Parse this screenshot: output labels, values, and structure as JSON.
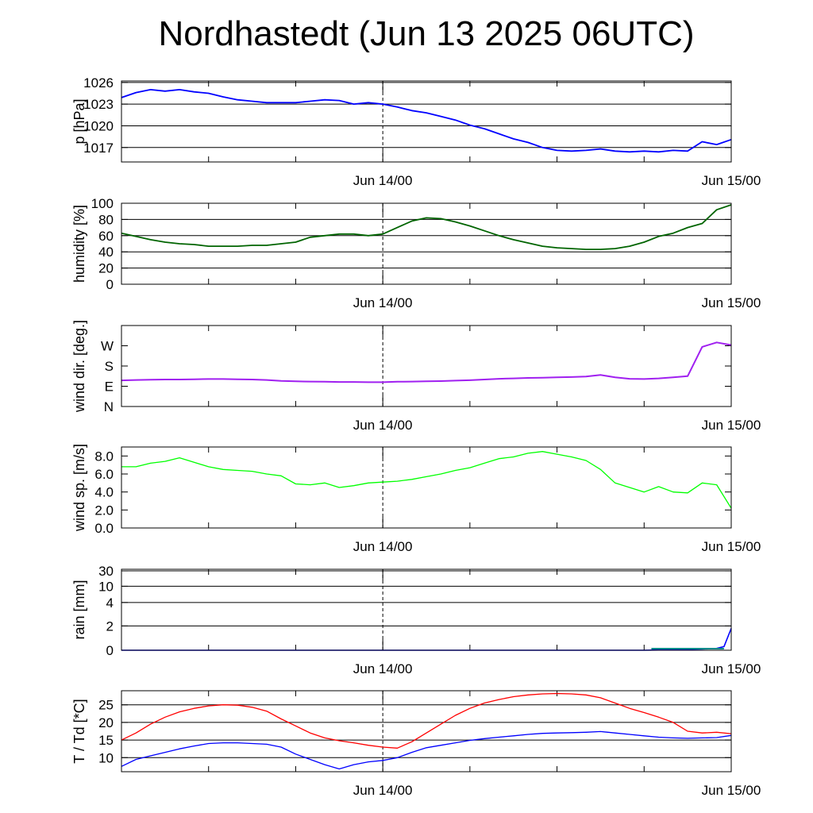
{
  "title": "Nordhastedt (Jun 13 2025 06UTC)",
  "colors": {
    "pressure": "#0000ff",
    "humidity": "#006400",
    "wind_dir": "#a020f0",
    "wind_speed": "#00ff00",
    "rain": "#0000ff",
    "rain2": "#008b8b",
    "temperature": "#ff0000",
    "dewpoint": "#0000ff"
  },
  "chart_data": [
    {
      "type": "line",
      "ylabel": "p [hPa]",
      "x_hours": [
        0,
        1,
        2,
        3,
        4,
        5,
        6,
        7,
        8,
        9,
        10,
        11,
        12,
        13,
        14,
        15,
        16,
        17,
        18,
        19,
        20,
        21,
        22,
        23,
        24,
        25,
        26,
        27,
        28,
        29,
        30,
        31,
        32,
        33,
        34,
        35,
        36,
        37,
        38,
        39,
        40,
        41,
        42
      ],
      "x_ticks": [
        "Jun 14/00",
        "Jun 15/00"
      ],
      "ylim": [
        1015,
        1026.2
      ],
      "y_ticks": [
        1017,
        1020,
        1023,
        1026
      ],
      "grid": true,
      "series": [
        {
          "values": [
            1023.9,
            1024.6,
            1025.0,
            1024.8,
            1025.0,
            1024.7,
            1024.5,
            1024.0,
            1023.6,
            1023.4,
            1023.2,
            1023.2,
            1023.2,
            1023.4,
            1023.6,
            1023.5,
            1023.0,
            1023.2,
            1023.0,
            1022.6,
            1022.1,
            1021.8,
            1021.3,
            1020.8,
            1020.1,
            1019.6,
            1018.9,
            1018.2,
            1017.7,
            1017.0,
            1016.6,
            1016.5,
            1016.6,
            1016.8,
            1016.5,
            1016.4,
            1016.5,
            1016.4,
            1016.6,
            1016.5,
            1017.8,
            1017.4,
            1018.1
          ]
        }
      ]
    },
    {
      "type": "line",
      "ylabel": "humidity [%]",
      "x_hours": [
        0,
        1,
        2,
        3,
        4,
        5,
        6,
        7,
        8,
        9,
        10,
        11,
        12,
        13,
        14,
        15,
        16,
        17,
        18,
        19,
        20,
        21,
        22,
        23,
        24,
        25,
        26,
        27,
        28,
        29,
        30,
        31,
        32,
        33,
        34,
        35,
        36,
        37,
        38,
        39,
        40,
        41,
        42
      ],
      "x_ticks": [
        "Jun 14/00",
        "Jun 15/00"
      ],
      "ylim": [
        0,
        100
      ],
      "y_ticks": [
        0,
        20,
        40,
        60,
        80,
        100
      ],
      "grid": true,
      "series": [
        {
          "values": [
            63,
            59,
            55,
            52,
            50,
            49,
            47,
            47,
            47,
            48,
            48,
            50,
            52,
            58,
            60,
            62,
            62,
            60,
            62,
            70,
            78,
            82,
            81,
            77,
            72,
            66,
            60,
            55,
            51,
            47,
            45,
            44,
            43,
            43,
            44,
            47,
            52,
            59,
            63,
            70,
            75,
            92,
            98
          ]
        }
      ]
    },
    {
      "type": "line",
      "ylabel": "wind dir. [deg.]",
      "x_hours": [
        0,
        1,
        2,
        3,
        4,
        5,
        6,
        7,
        8,
        9,
        10,
        11,
        12,
        13,
        14,
        15,
        16,
        17,
        18,
        19,
        20,
        21,
        22,
        23,
        24,
        25,
        26,
        27,
        28,
        29,
        30,
        31,
        32,
        33,
        34,
        35,
        36,
        37,
        38,
        39,
        40,
        41,
        42
      ],
      "x_ticks": [
        "Jun 14/00",
        "Jun 15/00"
      ],
      "ylim": [
        0,
        360
      ],
      "y_ticks": [
        "N",
        "E",
        "S",
        "W"
      ],
      "y_tick_values": [
        0,
        90,
        180,
        270
      ],
      "grid": false,
      "series": [
        {
          "values": [
            116,
            118,
            119,
            120,
            120,
            121,
            122,
            122,
            121,
            120,
            118,
            114,
            112,
            111,
            110,
            109,
            109,
            108,
            108,
            110,
            111,
            112,
            113,
            115,
            117,
            120,
            123,
            125,
            127,
            128,
            130,
            131,
            133,
            140,
            130,
            123,
            122,
            125,
            130,
            135,
            265,
            285,
            273
          ]
        }
      ]
    },
    {
      "type": "line",
      "ylabel": "wind sp. [m/s]",
      "x_hours": [
        0,
        1,
        2,
        3,
        4,
        5,
        6,
        7,
        8,
        9,
        10,
        11,
        12,
        13,
        14,
        15,
        16,
        17,
        18,
        19,
        20,
        21,
        22,
        23,
        24,
        25,
        26,
        27,
        28,
        29,
        30,
        31,
        32,
        33,
        34,
        35,
        36,
        37,
        38,
        39,
        40,
        41,
        42
      ],
      "x_ticks": [
        "Jun 14/00",
        "Jun 15/00"
      ],
      "ylim": [
        0,
        9
      ],
      "y_ticks": [
        "0.0",
        "2.0",
        "4.0",
        "6.0",
        "8.0"
      ],
      "grid": false,
      "series": [
        {
          "values": [
            6.8,
            6.8,
            7.2,
            7.4,
            7.8,
            7.3,
            6.8,
            6.5,
            6.4,
            6.3,
            6.0,
            5.8,
            4.9,
            4.8,
            5.0,
            4.5,
            4.7,
            5.0,
            5.1,
            5.2,
            5.4,
            5.7,
            6.0,
            6.4,
            6.7,
            7.2,
            7.7,
            7.9,
            8.3,
            8.5,
            8.2,
            7.9,
            7.5,
            6.5,
            5.0,
            4.5,
            4.0,
            4.6,
            4.0,
            3.9,
            5.0,
            4.8,
            2.2
          ]
        }
      ]
    },
    {
      "type": "line",
      "ylabel": "rain [mm]",
      "x_hours": [
        0,
        6,
        12,
        18,
        24,
        30,
        36,
        37,
        38,
        39,
        40,
        41,
        41.5,
        42
      ],
      "x_ticks": [
        "Jun 14/00",
        "Jun 15/00"
      ],
      "y_ticks": [
        "0",
        "2",
        "4",
        "10",
        "30"
      ],
      "y_tick_values": [
        0,
        2,
        4,
        10,
        30
      ],
      "grid": true,
      "series": [
        {
          "values": [
            0,
            0,
            0,
            0,
            0,
            0,
            0,
            0.02,
            0.05,
            0.08,
            0.1,
            0.15,
            0.3,
            1.8
          ]
        }
      ]
    },
    {
      "type": "line",
      "ylabel": "T / Td [*C]",
      "x_hours": [
        0,
        1,
        2,
        3,
        4,
        5,
        6,
        7,
        8,
        9,
        10,
        11,
        12,
        13,
        14,
        15,
        16,
        17,
        18,
        19,
        20,
        21,
        22,
        23,
        24,
        25,
        26,
        27,
        28,
        29,
        30,
        31,
        32,
        33,
        34,
        35,
        36,
        37,
        38,
        39,
        40,
        41,
        42
      ],
      "x_ticks": [
        "Jun 14/00",
        "Jun 15/00"
      ],
      "ylim": [
        6,
        29
      ],
      "y_ticks": [
        10,
        15,
        20,
        25
      ],
      "grid": true,
      "series": [
        {
          "values": [
            15.0,
            17.0,
            19.5,
            21.5,
            23.0,
            24.0,
            24.7,
            25.0,
            24.9,
            24.3,
            23.2,
            21.0,
            19.0,
            17.0,
            15.6,
            14.8,
            14.2,
            13.5,
            13.0,
            12.7,
            14.5,
            17.0,
            19.5,
            22.0,
            24.0,
            25.5,
            26.5,
            27.3,
            27.8,
            28.1,
            28.2,
            28.1,
            27.8,
            27.0,
            25.5,
            24.0,
            22.8,
            21.5,
            20.0,
            17.5,
            17.0,
            17.2,
            16.8
          ]
        },
        {
          "values": [
            7.5,
            9.5,
            10.5,
            11.5,
            12.5,
            13.3,
            14.0,
            14.2,
            14.2,
            14.0,
            13.8,
            13.0,
            11.0,
            9.5,
            8.0,
            6.8,
            8.0,
            8.8,
            9.2,
            10.0,
            11.5,
            12.8,
            13.5,
            14.2,
            14.9,
            15.4,
            15.8,
            16.2,
            16.6,
            16.9,
            17.0,
            17.1,
            17.2,
            17.4,
            17.0,
            16.6,
            16.2,
            15.8,
            15.6,
            15.5,
            15.6,
            15.7,
            16.3
          ]
        }
      ]
    }
  ]
}
